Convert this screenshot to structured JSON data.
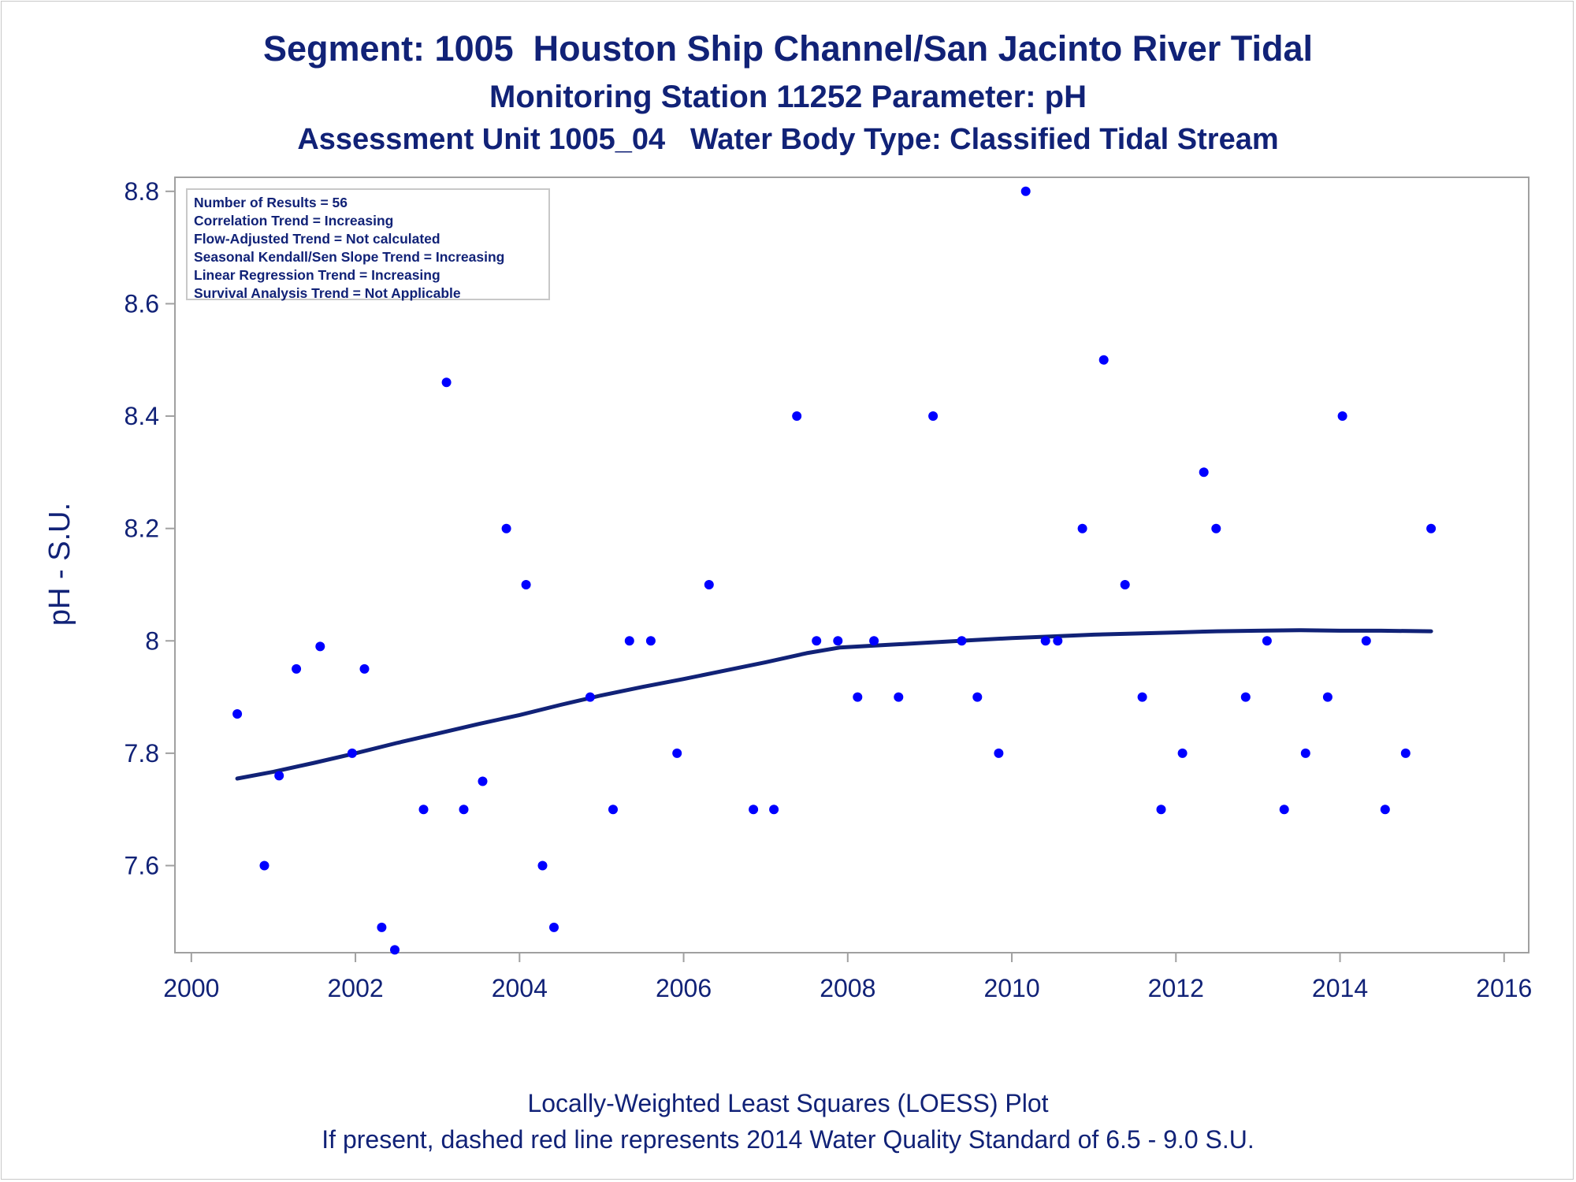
{
  "title": {
    "line1": "Segment: 1005  Houston Ship Channel/San Jacinto River Tidal",
    "line2": "Monitoring Station 11252 Parameter: pH",
    "line3": "Assessment Unit 1005_04   Water Body Type: Classified Tidal Stream"
  },
  "footnotes": {
    "line1": "Locally-Weighted Least Squares (LOESS) Plot",
    "line2": "If present, dashed red line represents 2014 Water Quality Standard of 6.5 - 9.0 S.U."
  },
  "colors": {
    "text": "#112277",
    "points": "#0000ff",
    "loess": "#112277",
    "frame": "#a0a0a0"
  },
  "legend": [
    "Number of Results = 56",
    "Correlation Trend = Increasing",
    "Flow-Adjusted Trend = Not calculated",
    "Seasonal Kendall/Sen Slope Trend = Increasing",
    "Linear Regression Trend = Increasing",
    "Survival Analysis Trend = Not Applicable"
  ],
  "chart_data": {
    "type": "scatter",
    "title": "Segment: 1005  Houston Ship Channel/San Jacinto River Tidal",
    "xlabel": "",
    "ylabel": "pH - S.U.",
    "xlim": [
      1999.8,
      2016.3
    ],
    "ylim": [
      7.445,
      8.825
    ],
    "x_ticks": [
      2000,
      2002,
      2004,
      2006,
      2008,
      2010,
      2012,
      2014,
      2016
    ],
    "y_ticks": [
      7.6,
      7.8,
      8.0,
      8.2,
      8.4,
      8.6,
      8.8
    ],
    "y_tick_labels": [
      "7.6",
      "7.8",
      "8",
      "8.2",
      "8.4",
      "8.6",
      "8.8"
    ],
    "grid": false,
    "series": [
      {
        "type": "scatter",
        "points": [
          [
            2000.56,
            7.87
          ],
          [
            2000.89,
            7.6
          ],
          [
            2001.07,
            7.76
          ],
          [
            2001.28,
            7.95
          ],
          [
            2001.57,
            7.99
          ],
          [
            2001.96,
            7.8
          ],
          [
            2002.11,
            7.95
          ],
          [
            2002.32,
            7.49
          ],
          [
            2002.48,
            7.45
          ],
          [
            2002.83,
            7.7
          ],
          [
            2003.11,
            8.46
          ],
          [
            2003.32,
            7.7
          ],
          [
            2003.55,
            7.75
          ],
          [
            2003.84,
            8.2
          ],
          [
            2004.08,
            8.1
          ],
          [
            2004.28,
            7.6
          ],
          [
            2004.42,
            7.49
          ],
          [
            2004.86,
            7.9
          ],
          [
            2005.14,
            7.7
          ],
          [
            2005.34,
            8.0
          ],
          [
            2005.6,
            8.0
          ],
          [
            2005.92,
            7.8
          ],
          [
            2006.31,
            8.1
          ],
          [
            2006.85,
            7.7
          ],
          [
            2007.1,
            7.7
          ],
          [
            2007.38,
            8.4
          ],
          [
            2007.62,
            8.0
          ],
          [
            2007.88,
            8.0
          ],
          [
            2008.12,
            7.9
          ],
          [
            2008.32,
            8.0
          ],
          [
            2008.62,
            7.9
          ],
          [
            2009.04,
            8.4
          ],
          [
            2009.39,
            8.0
          ],
          [
            2009.58,
            7.9
          ],
          [
            2009.84,
            7.8
          ],
          [
            2010.17,
            8.8
          ],
          [
            2010.41,
            8.0
          ],
          [
            2010.56,
            8.0
          ],
          [
            2010.86,
            8.2
          ],
          [
            2011.12,
            8.5
          ],
          [
            2011.38,
            8.1
          ],
          [
            2011.59,
            7.9
          ],
          [
            2011.82,
            7.7
          ],
          [
            2012.08,
            7.8
          ],
          [
            2012.34,
            8.3
          ],
          [
            2012.49,
            8.2
          ],
          [
            2012.85,
            7.9
          ],
          [
            2013.11,
            8.0
          ],
          [
            2013.32,
            7.7
          ],
          [
            2013.58,
            7.8
          ],
          [
            2013.85,
            7.9
          ],
          [
            2014.03,
            8.4
          ],
          [
            2014.32,
            8.0
          ],
          [
            2014.55,
            7.7
          ],
          [
            2014.8,
            7.8
          ],
          [
            2015.11,
            8.2
          ]
        ]
      },
      {
        "type": "line",
        "points": [
          [
            2000.56,
            7.755
          ],
          [
            2001.0,
            7.767
          ],
          [
            2001.5,
            7.783
          ],
          [
            2002.0,
            7.8
          ],
          [
            2002.5,
            7.818
          ],
          [
            2003.0,
            7.835
          ],
          [
            2003.5,
            7.852
          ],
          [
            2004.0,
            7.868
          ],
          [
            2004.5,
            7.886
          ],
          [
            2005.0,
            7.903
          ],
          [
            2005.5,
            7.918
          ],
          [
            2006.0,
            7.932
          ],
          [
            2006.5,
            7.947
          ],
          [
            2007.0,
            7.962
          ],
          [
            2007.5,
            7.978
          ],
          [
            2007.9,
            7.988
          ],
          [
            2008.5,
            7.993
          ],
          [
            2009.0,
            7.997
          ],
          [
            2009.5,
            8.001
          ],
          [
            2010.0,
            8.005
          ],
          [
            2010.5,
            8.008
          ],
          [
            2011.0,
            8.011
          ],
          [
            2011.5,
            8.013
          ],
          [
            2012.0,
            8.015
          ],
          [
            2012.5,
            8.017
          ],
          [
            2013.0,
            8.018
          ],
          [
            2013.5,
            8.019
          ],
          [
            2014.0,
            8.018
          ],
          [
            2014.5,
            8.018
          ],
          [
            2015.11,
            8.017
          ]
        ]
      }
    ]
  }
}
